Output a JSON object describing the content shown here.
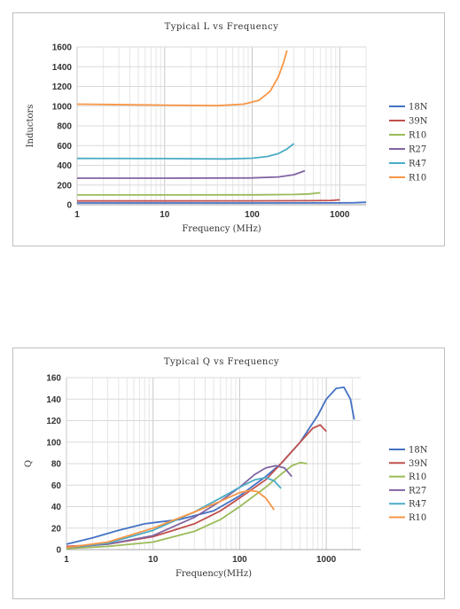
{
  "chart_data": [
    {
      "type": "line",
      "title": "Typical L vs Frequency",
      "xlabel": "Frequency (MHz)",
      "ylabel": "Inductors",
      "x_scale": "log",
      "xlim": [
        1,
        2000
      ],
      "ylim": [
        0,
        1600
      ],
      "yticks": [
        "0",
        "200",
        "400",
        "600",
        "800",
        "1000",
        "1200",
        "1400",
        "1600"
      ],
      "xticks": [
        {
          "v": 1,
          "label": "1"
        },
        {
          "v": 10,
          "label": "10"
        },
        {
          "v": 100,
          "label": "100"
        },
        {
          "v": 1000,
          "label": "1000"
        }
      ],
      "legend_position": "right",
      "series": [
        {
          "name": "18N",
          "color": "#4472c4",
          "points": [
            [
              1,
              18
            ],
            [
              10,
              18
            ],
            [
              100,
              18
            ],
            [
              1000,
              19
            ],
            [
              1500,
              21
            ],
            [
              2000,
              25
            ]
          ]
        },
        {
          "name": "39N",
          "color": "#c0504d",
          "points": [
            [
              1,
              39
            ],
            [
              10,
              39
            ],
            [
              100,
              40
            ],
            [
              500,
              41
            ],
            [
              800,
              44
            ],
            [
              1000,
              50
            ]
          ]
        },
        {
          "name": "R10",
          "color": "#9bbb59",
          "points": [
            [
              1,
              100
            ],
            [
              10,
              100
            ],
            [
              100,
              101
            ],
            [
              300,
              104
            ],
            [
              450,
              110
            ],
            [
              600,
              122
            ]
          ]
        },
        {
          "name": "R27",
          "color": "#8064a2",
          "points": [
            [
              1,
              270
            ],
            [
              10,
              270
            ],
            [
              100,
              272
            ],
            [
              200,
              282
            ],
            [
              300,
              305
            ],
            [
              400,
              345
            ]
          ]
        },
        {
          "name": "R47",
          "color": "#4bacc6",
          "points": [
            [
              1,
              470
            ],
            [
              10,
              468
            ],
            [
              50,
              465
            ],
            [
              100,
              472
            ],
            [
              150,
              490
            ],
            [
              200,
              520
            ],
            [
              250,
              565
            ],
            [
              300,
              620
            ]
          ]
        },
        {
          "name": "R10",
          "color": "#f79646",
          "points": [
            [
              1,
              1020
            ],
            [
              10,
              1010
            ],
            [
              40,
              1005
            ],
            [
              80,
              1020
            ],
            [
              120,
              1060
            ],
            [
              160,
              1150
            ],
            [
              200,
              1300
            ],
            [
              230,
              1450
            ],
            [
              250,
              1565
            ]
          ]
        }
      ]
    },
    {
      "type": "line",
      "title": "Typical Q vs Frequency",
      "xlabel": "Frequency(MHz)",
      "ylabel": "Q",
      "x_scale": "log",
      "xlim": [
        1,
        2500
      ],
      "ylim": [
        0,
        160
      ],
      "yticks": [
        "0",
        "20",
        "40",
        "60",
        "80",
        "100",
        "120",
        "140",
        "160"
      ],
      "xticks": [
        {
          "v": 1,
          "label": "1"
        },
        {
          "v": 10,
          "label": "10"
        },
        {
          "v": 100,
          "label": "100"
        },
        {
          "v": 1000,
          "label": "1000"
        }
      ],
      "legend_position": "right",
      "series": [
        {
          "name": "18N",
          "color": "#4472c4",
          "points": [
            [
              1,
              5
            ],
            [
              2,
              11
            ],
            [
              4,
              18
            ],
            [
              8,
              24
            ],
            [
              10,
              25
            ],
            [
              20,
              28
            ],
            [
              50,
              36
            ],
            [
              100,
              50
            ],
            [
              200,
              68
            ],
            [
              300,
              80
            ],
            [
              500,
              100
            ],
            [
              800,
              125
            ],
            [
              1000,
              140
            ],
            [
              1300,
              150
            ],
            [
              1600,
              151
            ],
            [
              1900,
              140
            ],
            [
              2100,
              121
            ]
          ]
        },
        {
          "name": "39N",
          "color": "#c0504d",
          "points": [
            [
              1,
              3
            ],
            [
              3,
              5
            ],
            [
              10,
              12
            ],
            [
              30,
              24
            ],
            [
              60,
              36
            ],
            [
              100,
              48
            ],
            [
              200,
              65
            ],
            [
              300,
              80
            ],
            [
              500,
              100
            ],
            [
              700,
              113
            ],
            [
              850,
              116
            ],
            [
              1000,
              110
            ]
          ]
        },
        {
          "name": "R10",
          "color": "#9bbb59",
          "points": [
            [
              1,
              1
            ],
            [
              3,
              3
            ],
            [
              10,
              7
            ],
            [
              30,
              17
            ],
            [
              60,
              28
            ],
            [
              100,
              40
            ],
            [
              200,
              58
            ],
            [
              300,
              70
            ],
            [
              400,
              78
            ],
            [
              500,
              81
            ],
            [
              600,
              80
            ]
          ]
        },
        {
          "name": "R27",
          "color": "#8064a2",
          "points": [
            [
              1,
              2
            ],
            [
              3,
              5
            ],
            [
              10,
              13
            ],
            [
              30,
              30
            ],
            [
              60,
              45
            ],
            [
              100,
              58
            ],
            [
              150,
              70
            ],
            [
              200,
              76
            ],
            [
              260,
              78
            ],
            [
              330,
              76
            ],
            [
              400,
              68
            ]
          ]
        },
        {
          "name": "R47",
          "color": "#4bacc6",
          "points": [
            [
              1,
              2
            ],
            [
              3,
              6
            ],
            [
              10,
              18
            ],
            [
              30,
              35
            ],
            [
              60,
              48
            ],
            [
              100,
              58
            ],
            [
              150,
              65
            ],
            [
              200,
              67
            ],
            [
              250,
              64
            ],
            [
              300,
              57
            ]
          ]
        },
        {
          "name": "R10",
          "color": "#f79646",
          "points": [
            [
              1,
              2
            ],
            [
              3,
              7
            ],
            [
              10,
              20
            ],
            [
              30,
              35
            ],
            [
              60,
              45
            ],
            [
              100,
              53
            ],
            [
              130,
              55
            ],
            [
              160,
              54
            ],
            [
              200,
              48
            ],
            [
              250,
              37
            ]
          ]
        }
      ]
    }
  ]
}
